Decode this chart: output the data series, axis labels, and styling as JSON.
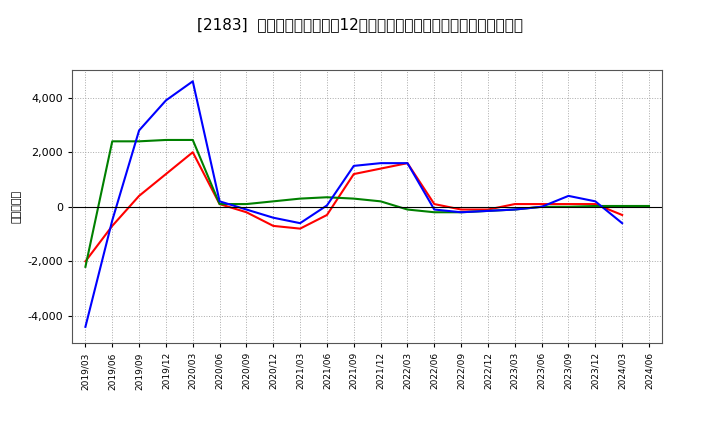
{
  "title": "[2183]  キャッシュフローの12か月移動合計の対前年同期増減額の推移",
  "ylabel": "（百万円）",
  "x_labels": [
    "2019/03",
    "2019/06",
    "2019/09",
    "2019/12",
    "2020/03",
    "2020/06",
    "2020/09",
    "2020/12",
    "2021/03",
    "2021/06",
    "2021/09",
    "2021/12",
    "2022/03",
    "2022/06",
    "2022/09",
    "2022/12",
    "2023/03",
    "2023/06",
    "2023/09",
    "2023/12",
    "2024/03",
    "2024/06"
  ],
  "eigyo_cf": [
    -2000,
    -700,
    400,
    1200,
    2000,
    100,
    -200,
    -700,
    -800,
    -300,
    1200,
    1400,
    1600,
    100,
    -100,
    -100,
    100,
    100,
    100,
    100,
    -300,
    null
  ],
  "toshi_cf": [
    -2200,
    2400,
    2400,
    2450,
    2450,
    100,
    100,
    200,
    300,
    350,
    300,
    200,
    -100,
    -200,
    -200,
    -150,
    -100,
    0,
    0,
    30,
    30,
    30
  ],
  "free_cf": [
    -4400,
    -500,
    2800,
    3900,
    4600,
    200,
    -100,
    -400,
    -600,
    50,
    1500,
    1600,
    1600,
    -100,
    -200,
    -150,
    -100,
    0,
    400,
    200,
    -600,
    null
  ],
  "eigyo_color": "#ff0000",
  "toshi_color": "#008000",
  "free_color": "#0000ff",
  "bg_color": "#ffffff",
  "plot_bg_color": "#ffffff",
  "ylim": [
    -5000,
    5000
  ],
  "yticks": [
    -4000,
    -2000,
    0,
    2000,
    4000
  ],
  "grid_color": "#aaaaaa",
  "title_fontsize": 11
}
